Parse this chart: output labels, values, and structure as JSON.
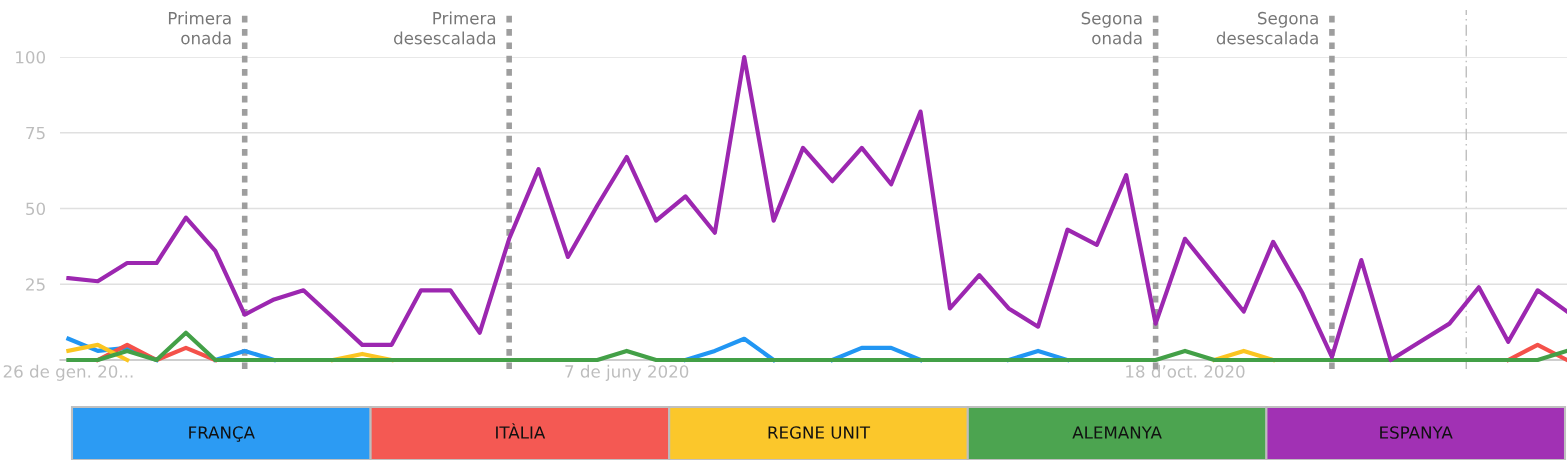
{
  "chart_data": {
    "type": "line",
    "x": [
      "2020-01-26",
      "2020-02-02",
      "2020-02-09",
      "2020-02-16",
      "2020-02-23",
      "2020-03-01",
      "2020-03-08",
      "2020-03-15",
      "2020-03-22",
      "2020-03-29",
      "2020-04-05",
      "2020-04-12",
      "2020-04-19",
      "2020-04-26",
      "2020-05-03",
      "2020-05-10",
      "2020-05-17",
      "2020-05-24",
      "2020-05-31",
      "2020-06-07",
      "2020-06-14",
      "2020-06-21",
      "2020-06-28",
      "2020-07-05",
      "2020-07-12",
      "2020-07-19",
      "2020-07-26",
      "2020-08-02",
      "2020-08-09",
      "2020-08-16",
      "2020-08-23",
      "2020-08-30",
      "2020-09-06",
      "2020-09-13",
      "2020-09-20",
      "2020-09-27",
      "2020-10-04",
      "2020-10-11",
      "2020-10-18",
      "2020-10-25",
      "2020-11-01",
      "2020-11-08",
      "2020-11-15",
      "2020-11-22",
      "2020-11-29",
      "2020-12-06",
      "2020-12-13",
      "2020-12-20",
      "2020-12-27",
      "2021-01-03",
      "2021-01-10",
      "2021-01-17"
    ],
    "series": [
      {
        "name": "FRANÇA",
        "color": "#2196f3",
        "values": [
          7,
          3,
          4,
          0,
          null,
          0,
          3,
          0,
          null,
          null,
          null,
          null,
          null,
          null,
          null,
          null,
          null,
          null,
          null,
          null,
          null,
          0,
          3,
          7,
          0,
          null,
          0,
          4,
          4,
          0,
          null,
          null,
          0,
          3,
          0,
          null,
          null,
          null,
          null,
          null,
          null,
          null,
          null,
          null,
          null,
          null,
          null,
          null,
          null,
          null,
          null,
          null
        ]
      },
      {
        "name": "ITÀLIA",
        "color": "#f4514a",
        "values": [
          null,
          0,
          5,
          0,
          4,
          0,
          null,
          null,
          null,
          null,
          null,
          null,
          null,
          null,
          null,
          null,
          null,
          null,
          null,
          null,
          null,
          null,
          null,
          null,
          null,
          null,
          null,
          null,
          null,
          null,
          null,
          null,
          null,
          null,
          null,
          null,
          null,
          null,
          null,
          null,
          null,
          null,
          null,
          null,
          null,
          null,
          null,
          null,
          null,
          0,
          5,
          0
        ]
      },
      {
        "name": "REGNE UNIT",
        "color": "#fbc520",
        "values": [
          3,
          5,
          0,
          null,
          null,
          null,
          null,
          null,
          null,
          0,
          2,
          0,
          null,
          null,
          null,
          null,
          null,
          null,
          null,
          null,
          null,
          null,
          null,
          null,
          null,
          null,
          null,
          null,
          null,
          null,
          null,
          null,
          null,
          null,
          null,
          null,
          null,
          null,
          null,
          0,
          3,
          0,
          null,
          null,
          null,
          null,
          null,
          null,
          null,
          null,
          null,
          null
        ]
      },
      {
        "name": "ALEMANYA",
        "color": "#43a047",
        "values": [
          0,
          0,
          3,
          0,
          9,
          0,
          0,
          0,
          0,
          0,
          0,
          0,
          0,
          0,
          0,
          0,
          0,
          0,
          0,
          3,
          0,
          0,
          0,
          0,
          0,
          0,
          0,
          0,
          0,
          0,
          0,
          0,
          0,
          0,
          0,
          0,
          0,
          0,
          3,
          0,
          0,
          0,
          0,
          0,
          0,
          0,
          0,
          0,
          0,
          0,
          0,
          3
        ]
      },
      {
        "name": "ESPANYA",
        "color": "#9c27b0",
        "values": [
          27,
          26,
          32,
          32,
          47,
          36,
          15,
          20,
          23,
          14,
          5,
          5,
          23,
          23,
          9,
          40,
          63,
          34,
          51,
          67,
          46,
          54,
          42,
          100,
          46,
          70,
          59,
          70,
          58,
          82,
          17,
          28,
          17,
          11,
          43,
          38,
          61,
          12,
          40,
          28,
          16,
          39,
          22,
          1,
          33,
          0,
          6,
          12,
          24,
          6,
          23,
          16
        ]
      }
    ],
    "xlim": [
      "2020-01-24",
      "2021-01-17"
    ],
    "xticks": [
      {
        "value": "2020-01-26",
        "label": "26 de gen. 20..."
      },
      {
        "value": "2020-06-07",
        "label": "7 de juny 2020"
      },
      {
        "value": "2020-10-18",
        "label": "18 d’oct. 2020"
      }
    ],
    "ylim": [
      0,
      100
    ],
    "yticks": [
      25,
      50,
      75,
      100
    ],
    "grid": "y",
    "legend": "bottom",
    "ref_lines": [
      {
        "axis": "x",
        "value": "2020-03-08",
        "label": "Primera\nonada",
        "color": "#9e9e9e",
        "line_style": "dotted"
      },
      {
        "axis": "x",
        "value": "2020-05-10",
        "label": "Primera\ndesescalada",
        "color": "#9e9e9e",
        "line_style": "dotted"
      },
      {
        "axis": "x",
        "value": "2020-10-11",
        "label": "Segona\nonada",
        "color": "#9e9e9e",
        "line_style": "dotted"
      },
      {
        "axis": "x",
        "value": "2020-11-22",
        "label": "Segona\ndesescalada",
        "color": "#9e9e9e",
        "line_style": "dotted"
      },
      {
        "axis": "x",
        "value": "2020-12-24",
        "label": null,
        "color": "#bdbdbd",
        "line_style": "dashdot"
      }
    ]
  }
}
